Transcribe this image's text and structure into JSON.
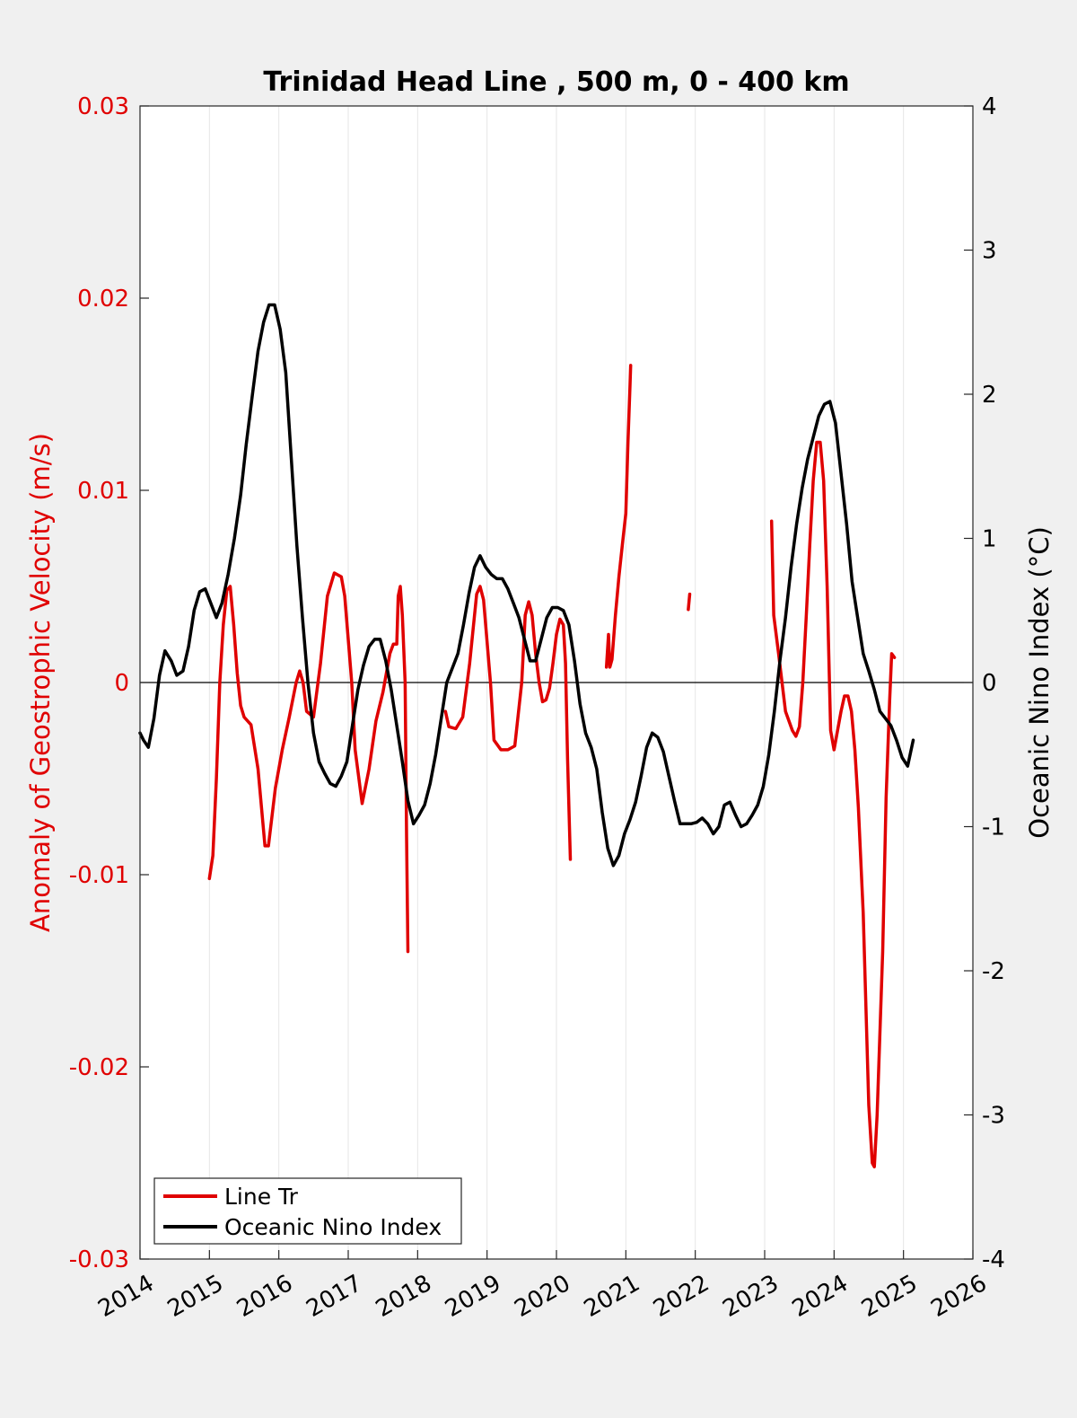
{
  "chart_data": {
    "type": "line",
    "title": "Trinidad Head Line , 500 m, 0 - 400 km",
    "xlabel": "",
    "ylabel_left": "Anomaly of Geostrophic Velocity (m/s)",
    "ylabel_right": "Oceanic Nino Index (°C)",
    "xlim": [
      2014,
      2026
    ],
    "ylim_left": [
      -0.03,
      0.03
    ],
    "ylim_right": [
      -4,
      4
    ],
    "x_ticks": [
      "2014",
      "2015",
      "2016",
      "2017",
      "2018",
      "2019",
      "2020",
      "2021",
      "2022",
      "2023",
      "2024",
      "2025",
      "2026"
    ],
    "y_ticks_left": [
      "-0.03",
      "-0.02",
      "-0.01",
      "0",
      "0.01",
      "0.02",
      "0.03"
    ],
    "y_ticks_right": [
      "-4",
      "-3",
      "-2",
      "-1",
      "0",
      "1",
      "2",
      "3",
      "4"
    ],
    "grid": "x-major",
    "legend_position": "bottom-left",
    "colors": {
      "line_tr": "#e00000",
      "oni": "#000000",
      "axis_left": "#e00000",
      "zero_line": "#000000"
    },
    "series": [
      {
        "name": "Line Tr",
        "axis": "left",
        "segments": [
          [
            [
              2015.0,
              -0.0102
            ],
            [
              2015.05,
              -0.009
            ],
            [
              2015.1,
              -0.005
            ],
            [
              2015.15,
              0.0
            ],
            [
              2015.2,
              0.003
            ],
            [
              2015.25,
              0.0048
            ],
            [
              2015.3,
              0.005
            ],
            [
              2015.35,
              0.003
            ],
            [
              2015.4,
              0.0005
            ],
            [
              2015.45,
              -0.0012
            ],
            [
              2015.5,
              -0.0018
            ],
            [
              2015.6,
              -0.0022
            ],
            [
              2015.7,
              -0.0045
            ],
            [
              2015.8,
              -0.0085
            ],
            [
              2015.85,
              -0.0085
            ],
            [
              2015.95,
              -0.0055
            ],
            [
              2016.05,
              -0.0035
            ],
            [
              2016.15,
              -0.0018
            ],
            [
              2016.25,
              0.0
            ],
            [
              2016.3,
              0.0006
            ],
            [
              2016.35,
              0.0
            ],
            [
              2016.4,
              -0.0015
            ],
            [
              2016.5,
              -0.0018
            ],
            [
              2016.6,
              0.001
            ],
            [
              2016.7,
              0.0045
            ],
            [
              2016.8,
              0.0057
            ],
            [
              2016.9,
              0.0055
            ],
            [
              2016.95,
              0.0045
            ],
            [
              2017.05,
              0.0
            ],
            [
              2017.1,
              -0.0035
            ],
            [
              2017.2,
              -0.0063
            ],
            [
              2017.3,
              -0.0045
            ],
            [
              2017.4,
              -0.002
            ],
            [
              2017.5,
              -0.0005
            ],
            [
              2017.6,
              0.0015
            ],
            [
              2017.65,
              0.002
            ],
            [
              2017.7,
              0.002
            ],
            [
              2017.72,
              0.0045
            ],
            [
              2017.75,
              0.005
            ],
            [
              2017.78,
              0.0035
            ],
            [
              2017.82,
              0.0
            ],
            [
              2017.84,
              -0.008
            ],
            [
              2017.86,
              -0.014
            ]
          ],
          [
            [
              2018.4,
              -0.0015
            ],
            [
              2018.45,
              -0.0023
            ],
            [
              2018.55,
              -0.0024
            ],
            [
              2018.65,
              -0.0018
            ],
            [
              2018.75,
              0.001
            ],
            [
              2018.85,
              0.0046
            ],
            [
              2018.9,
              0.005
            ],
            [
              2018.95,
              0.0043
            ],
            [
              2019.05,
              0.0
            ],
            [
              2019.1,
              -0.003
            ],
            [
              2019.2,
              -0.0035
            ],
            [
              2019.3,
              -0.0035
            ],
            [
              2019.4,
              -0.0033
            ],
            [
              2019.5,
              0.0
            ],
            [
              2019.55,
              0.0035
            ],
            [
              2019.6,
              0.0042
            ],
            [
              2019.65,
              0.0035
            ],
            [
              2019.7,
              0.0015
            ],
            [
              2019.75,
              0.0
            ],
            [
              2019.8,
              -0.001
            ],
            [
              2019.85,
              -0.0009
            ],
            [
              2019.9,
              -0.0003
            ],
            [
              2019.95,
              0.001
            ],
            [
              2020.0,
              0.0025
            ],
            [
              2020.05,
              0.0033
            ],
            [
              2020.1,
              0.003
            ],
            [
              2020.13,
              0.001
            ],
            [
              2020.16,
              -0.004
            ],
            [
              2020.2,
              -0.0092
            ]
          ],
          [
            [
              2020.72,
              0.0008
            ],
            [
              2020.75,
              0.0025
            ],
            [
              2020.77,
              0.0008
            ],
            [
              2020.8,
              0.0012
            ],
            [
              2020.85,
              0.0035
            ],
            [
              2020.9,
              0.0055
            ],
            [
              2020.95,
              0.0072
            ],
            [
              2021.0,
              0.0088
            ],
            [
              2021.03,
              0.0125
            ],
            [
              2021.06,
              0.0155
            ],
            [
              2021.07,
              0.0165
            ]
          ],
          [
            [
              2021.9,
              0.0038
            ],
            [
              2021.92,
              0.0046
            ]
          ],
          [
            [
              2023.1,
              0.0084
            ],
            [
              2023.13,
              0.0035
            ],
            [
              2023.2,
              0.0015
            ],
            [
              2023.3,
              -0.0015
            ],
            [
              2023.4,
              -0.0025
            ],
            [
              2023.45,
              -0.0028
            ],
            [
              2023.5,
              -0.0023
            ],
            [
              2023.55,
              0.0
            ],
            [
              2023.6,
              0.0035
            ],
            [
              2023.65,
              0.0072
            ],
            [
              2023.7,
              0.0105
            ],
            [
              2023.75,
              0.0125
            ],
            [
              2023.8,
              0.0125
            ],
            [
              2023.85,
              0.0105
            ],
            [
              2023.9,
              0.005
            ],
            [
              2023.95,
              -0.0025
            ],
            [
              2024.0,
              -0.0035
            ],
            [
              2024.05,
              -0.0025
            ],
            [
              2024.1,
              -0.0015
            ],
            [
              2024.15,
              -0.0007
            ],
            [
              2024.2,
              -0.0007
            ],
            [
              2024.25,
              -0.0015
            ],
            [
              2024.3,
              -0.0035
            ],
            [
              2024.35,
              -0.0065
            ],
            [
              2024.42,
              -0.012
            ],
            [
              2024.5,
              -0.022
            ],
            [
              2024.55,
              -0.025
            ],
            [
              2024.58,
              -0.0252
            ],
            [
              2024.62,
              -0.0225
            ],
            [
              2024.7,
              -0.014
            ],
            [
              2024.75,
              -0.006
            ],
            [
              2024.8,
              -0.001
            ],
            [
              2024.83,
              0.0015
            ],
            [
              2024.87,
              0.0013
            ]
          ]
        ]
      },
      {
        "name": "Oceanic Nino Index",
        "axis": "right",
        "segments": [
          [
            [
              2014.0,
              -0.35
            ],
            [
              2014.05,
              -0.4
            ],
            [
              2014.12,
              -0.45
            ],
            [
              2014.2,
              -0.25
            ],
            [
              2014.28,
              0.05
            ],
            [
              2014.36,
              0.22
            ],
            [
              2014.45,
              0.15
            ],
            [
              2014.53,
              0.05
            ],
            [
              2014.62,
              0.08
            ],
            [
              2014.7,
              0.25
            ],
            [
              2014.78,
              0.5
            ],
            [
              2014.86,
              0.63
            ],
            [
              2014.94,
              0.65
            ],
            [
              2015.02,
              0.55
            ],
            [
              2015.1,
              0.45
            ],
            [
              2015.18,
              0.55
            ],
            [
              2015.27,
              0.75
            ],
            [
              2015.36,
              1.0
            ],
            [
              2015.45,
              1.3
            ],
            [
              2015.53,
              1.65
            ],
            [
              2015.62,
              2.0
            ],
            [
              2015.7,
              2.3
            ],
            [
              2015.78,
              2.5
            ],
            [
              2015.86,
              2.62
            ],
            [
              2015.94,
              2.62
            ],
            [
              2016.02,
              2.45
            ],
            [
              2016.1,
              2.15
            ],
            [
              2016.18,
              1.55
            ],
            [
              2016.26,
              0.95
            ],
            [
              2016.34,
              0.45
            ],
            [
              2016.42,
              0.0
            ],
            [
              2016.5,
              -0.35
            ],
            [
              2016.58,
              -0.55
            ],
            [
              2016.66,
              -0.63
            ],
            [
              2016.74,
              -0.7
            ],
            [
              2016.82,
              -0.72
            ],
            [
              2016.9,
              -0.65
            ],
            [
              2016.98,
              -0.55
            ],
            [
              2017.06,
              -0.3
            ],
            [
              2017.14,
              -0.05
            ],
            [
              2017.22,
              0.12
            ],
            [
              2017.3,
              0.25
            ],
            [
              2017.38,
              0.3
            ],
            [
              2017.46,
              0.3
            ],
            [
              2017.54,
              0.15
            ],
            [
              2017.62,
              -0.05
            ],
            [
              2017.7,
              -0.3
            ],
            [
              2017.78,
              -0.55
            ],
            [
              2017.86,
              -0.82
            ],
            [
              2017.94,
              -0.98
            ],
            [
              2018.02,
              -0.92
            ],
            [
              2018.1,
              -0.85
            ],
            [
              2018.18,
              -0.7
            ],
            [
              2018.26,
              -0.5
            ],
            [
              2018.34,
              -0.25
            ],
            [
              2018.42,
              0.0
            ],
            [
              2018.5,
              0.1
            ],
            [
              2018.58,
              0.2
            ],
            [
              2018.66,
              0.4
            ],
            [
              2018.74,
              0.62
            ],
            [
              2018.82,
              0.8
            ],
            [
              2018.9,
              0.88
            ],
            [
              2018.98,
              0.8
            ],
            [
              2019.06,
              0.75
            ],
            [
              2019.14,
              0.72
            ],
            [
              2019.22,
              0.72
            ],
            [
              2019.3,
              0.65
            ],
            [
              2019.38,
              0.55
            ],
            [
              2019.46,
              0.45
            ],
            [
              2019.54,
              0.3
            ],
            [
              2019.62,
              0.15
            ],
            [
              2019.7,
              0.15
            ],
            [
              2019.78,
              0.3
            ],
            [
              2019.86,
              0.45
            ],
            [
              2019.94,
              0.52
            ],
            [
              2020.02,
              0.52
            ],
            [
              2020.1,
              0.5
            ],
            [
              2020.18,
              0.4
            ],
            [
              2020.26,
              0.15
            ],
            [
              2020.34,
              -0.15
            ],
            [
              2020.42,
              -0.35
            ],
            [
              2020.5,
              -0.45
            ],
            [
              2020.58,
              -0.6
            ],
            [
              2020.66,
              -0.9
            ],
            [
              2020.74,
              -1.15
            ],
            [
              2020.82,
              -1.27
            ],
            [
              2020.9,
              -1.2
            ],
            [
              2020.98,
              -1.05
            ],
            [
              2021.06,
              -0.95
            ],
            [
              2021.14,
              -0.83
            ],
            [
              2021.22,
              -0.65
            ],
            [
              2021.3,
              -0.45
            ],
            [
              2021.38,
              -0.35
            ],
            [
              2021.46,
              -0.38
            ],
            [
              2021.54,
              -0.48
            ],
            [
              2021.62,
              -0.65
            ],
            [
              2021.7,
              -0.82
            ],
            [
              2021.78,
              -0.98
            ],
            [
              2021.86,
              -0.98
            ],
            [
              2021.94,
              -0.98
            ],
            [
              2022.02,
              -0.97
            ],
            [
              2022.1,
              -0.94
            ],
            [
              2022.18,
              -0.98
            ],
            [
              2022.26,
              -1.05
            ],
            [
              2022.34,
              -1.0
            ],
            [
              2022.42,
              -0.85
            ],
            [
              2022.5,
              -0.83
            ],
            [
              2022.58,
              -0.92
            ],
            [
              2022.66,
              -1.0
            ],
            [
              2022.74,
              -0.98
            ],
            [
              2022.82,
              -0.92
            ],
            [
              2022.9,
              -0.85
            ],
            [
              2022.98,
              -0.72
            ],
            [
              2023.06,
              -0.5
            ],
            [
              2023.14,
              -0.2
            ],
            [
              2023.22,
              0.15
            ],
            [
              2023.3,
              0.45
            ],
            [
              2023.38,
              0.8
            ],
            [
              2023.46,
              1.1
            ],
            [
              2023.54,
              1.35
            ],
            [
              2023.62,
              1.55
            ],
            [
              2023.7,
              1.7
            ],
            [
              2023.78,
              1.85
            ],
            [
              2023.86,
              1.93
            ],
            [
              2023.94,
              1.95
            ],
            [
              2024.02,
              1.8
            ],
            [
              2024.1,
              1.45
            ],
            [
              2024.18,
              1.1
            ],
            [
              2024.26,
              0.7
            ],
            [
              2024.34,
              0.45
            ],
            [
              2024.42,
              0.2
            ],
            [
              2024.5,
              0.08
            ],
            [
              2024.58,
              -0.05
            ],
            [
              2024.66,
              -0.2
            ],
            [
              2024.74,
              -0.25
            ],
            [
              2024.82,
              -0.3
            ],
            [
              2024.9,
              -0.4
            ],
            [
              2024.98,
              -0.52
            ],
            [
              2025.06,
              -0.58
            ],
            [
              2025.14,
              -0.4
            ]
          ]
        ]
      }
    ]
  }
}
